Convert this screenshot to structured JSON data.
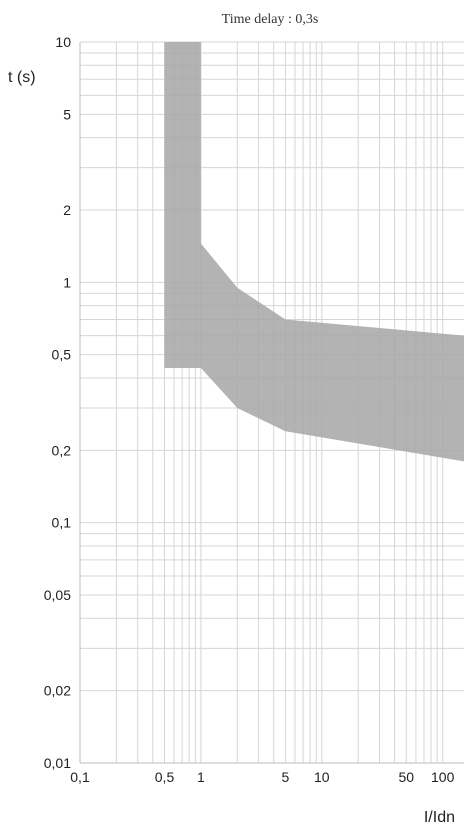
{
  "chart_data": {
    "type": "area",
    "title": "Time delay : 0,3s",
    "xlabel": "I/Idn",
    "ylabel": "t (s)",
    "xscale": "log",
    "yscale": "log",
    "xlim": [
      0.1,
      150
    ],
    "ylim": [
      0.01,
      10
    ],
    "grid": true,
    "xticks": [
      {
        "value": 0.1,
        "label": "0,1"
      },
      {
        "value": 0.5,
        "label": "0,5"
      },
      {
        "value": 1,
        "label": "1"
      },
      {
        "value": 5,
        "label": "5"
      },
      {
        "value": 10,
        "label": "10"
      },
      {
        "value": 50,
        "label": "50"
      },
      {
        "value": 100,
        "label": "100"
      }
    ],
    "yticks": [
      {
        "value": 0.01,
        "label": "0,01"
      },
      {
        "value": 0.02,
        "label": "0,02"
      },
      {
        "value": 0.05,
        "label": "0,05"
      },
      {
        "value": 0.1,
        "label": "0,1"
      },
      {
        "value": 0.2,
        "label": "0,2"
      },
      {
        "value": 0.5,
        "label": "0,5"
      },
      {
        "value": 1,
        "label": "1"
      },
      {
        "value": 2,
        "label": "2"
      },
      {
        "value": 5,
        "label": "5"
      },
      {
        "value": 10,
        "label": "10"
      }
    ],
    "band": {
      "color": "#a9a9a9",
      "upper": [
        [
          0.5,
          10
        ],
        [
          1,
          10
        ],
        [
          1,
          1.45
        ],
        [
          2,
          0.95
        ],
        [
          5,
          0.7
        ],
        [
          150,
          0.6
        ]
      ],
      "lower": [
        [
          0.5,
          0.44
        ],
        [
          1,
          0.44
        ],
        [
          2,
          0.3
        ],
        [
          5,
          0.24
        ],
        [
          150,
          0.18
        ]
      ]
    }
  }
}
